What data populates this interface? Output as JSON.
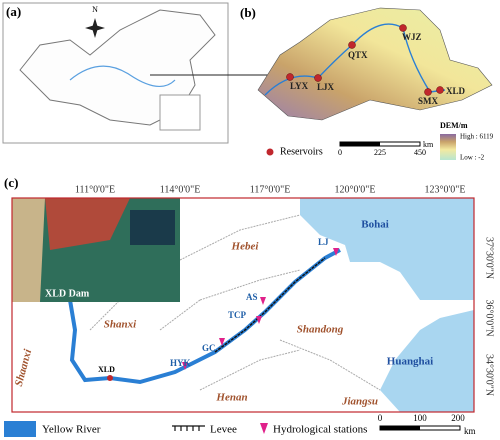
{
  "panel_a": {
    "label": "(a)",
    "north": "N"
  },
  "panel_b": {
    "label": "(b)",
    "reservoir_sites": [
      "WJZ",
      "QTX",
      "LYX",
      "LJX",
      "XLD",
      "SMX"
    ],
    "dem_title": "DEM/m",
    "dem_high": "High : 6119",
    "dem_low": "Low : -2",
    "reservoirs": "Reservoirs",
    "scale": [
      "0",
      "225",
      "450"
    ],
    "scale_unit": "km"
  },
  "panel_c": {
    "label": "(c)",
    "lon_ticks": [
      "111°0'0\"E",
      "114°0'0\"E",
      "117°0'0\"E",
      "120°0'0\"E",
      "123°0'0\"E"
    ],
    "lat_ticks": [
      "37°30'0\"N",
      "36°0'0\"N",
      "34°30'0\"N"
    ],
    "regions": [
      "Bohai",
      "Hebei",
      "Shanxi",
      "Shandong",
      "Shaanxi",
      "Henan",
      "Jiangsu",
      "Huanghai"
    ],
    "stations": [
      "LJ",
      "AS",
      "TCP",
      "GC",
      "HYK",
      "XLD"
    ],
    "inset": "XLD Dam",
    "legend": [
      "Yellow River",
      "Levee",
      "Hydrological stations"
    ],
    "scale": [
      "0",
      "100",
      "200"
    ],
    "scale_unit": "km"
  }
}
